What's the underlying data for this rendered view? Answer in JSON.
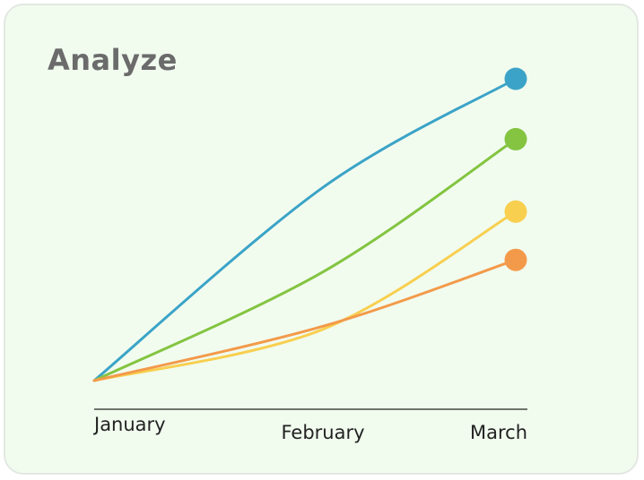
{
  "card": {
    "title": "Analyze"
  },
  "chart_data": {
    "type": "line",
    "title": "Analyze",
    "categories": [
      "January",
      "February",
      "March"
    ],
    "smooth": true,
    "show_end_markers": true,
    "grid": false,
    "y_axis_visible": false,
    "ylim": [
      0,
      100
    ],
    "series": [
      {
        "color": "#3ba3c7",
        "values": [
          0,
          64,
          100
        ]
      },
      {
        "color": "#84c441",
        "values": [
          0,
          36,
          80
        ]
      },
      {
        "color": "#f8cf4f",
        "values": [
          0,
          17,
          56
        ]
      },
      {
        "color": "#f39a4a",
        "values": [
          0,
          18,
          40
        ]
      }
    ]
  }
}
